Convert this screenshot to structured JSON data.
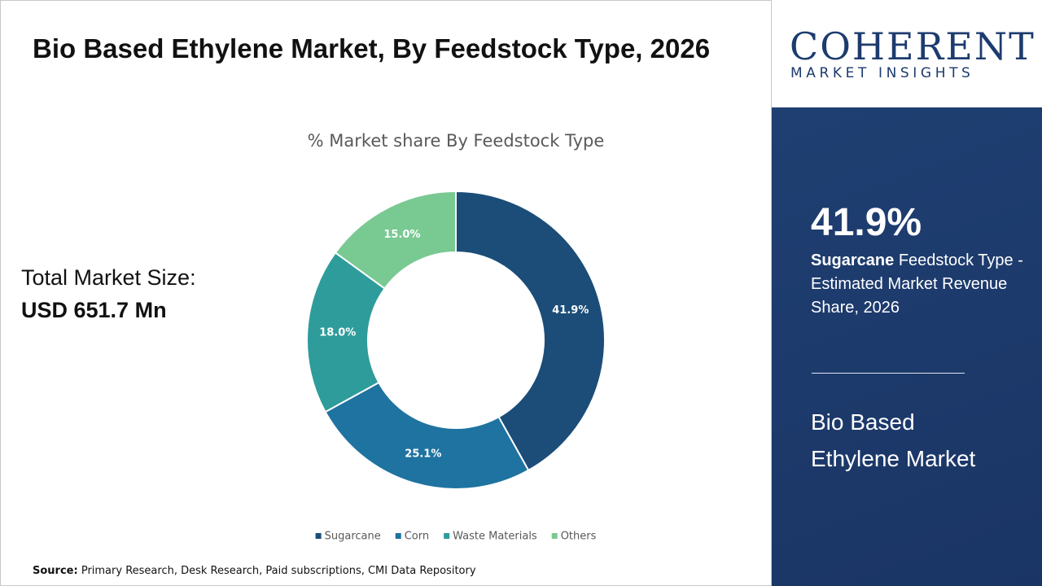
{
  "title": "Bio Based Ethylene Market, By Feedstock Type, 2026",
  "market_size": {
    "label": "Total Market Size:",
    "value": "USD 651.7 Mn"
  },
  "source": {
    "label": "Source:",
    "text": "Primary Research, Desk Research, Paid subscriptions, CMI Data Repository"
  },
  "logo": {
    "name": "COHERENT",
    "tagline": "MARKET INSIGHTS"
  },
  "highlight": {
    "value": "41.9%",
    "category": "Sugarcane",
    "text": "Feedstock Type - Estimated Market Revenue Share, 2026",
    "market": "Bio Based Ethylene Market"
  },
  "chart_data": {
    "type": "donut",
    "title": "% Market share By Feedstock Type",
    "categories": [
      "Sugarcane",
      "Corn",
      "Waste Materials",
      "Others"
    ],
    "values": [
      41.9,
      25.1,
      18.0,
      15.0
    ],
    "value_labels": [
      "41.9%",
      "25.1%",
      "18.0%",
      "15.0%"
    ],
    "colors": [
      "#1b4d78",
      "#1e73a0",
      "#2e9c9b",
      "#79c992"
    ],
    "legend": "bottom"
  }
}
